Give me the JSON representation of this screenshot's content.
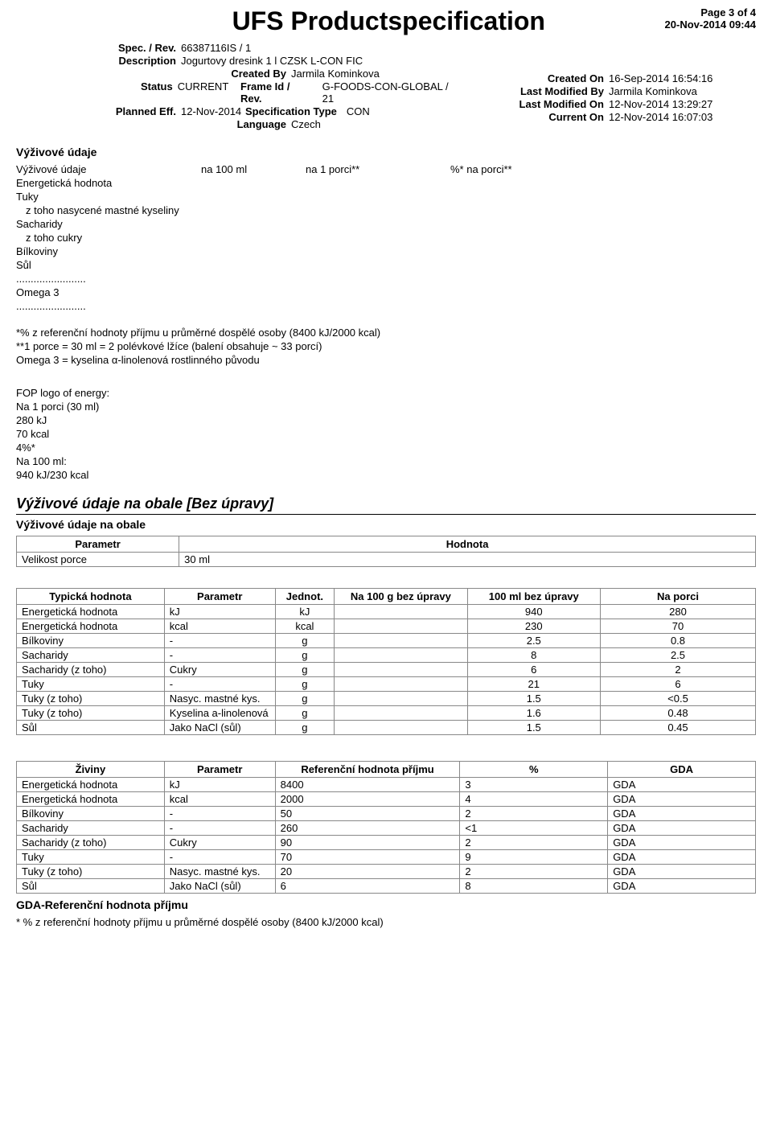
{
  "page_info": {
    "page": "Page 3 of 4",
    "datetime": "20-Nov-2014 09:44"
  },
  "main_title": "UFS Productspecification",
  "meta_left": {
    "spec_rev_label": "Spec. / Rev.",
    "spec_rev": "66387116IS  /  1",
    "description_label": "Description",
    "description": "Jogurtovy dresink 1 l CZSK L-CON FIC",
    "created_by_label": "Created By",
    "created_by": "Jarmila Kominkova",
    "status_label": "Status",
    "status": "CURRENT",
    "frame_label": "Frame Id / Rev.",
    "frame": "G-FOODS-CON-GLOBAL  /   21",
    "planned_label": "Planned Eff.",
    "planned": "12-Nov-2014",
    "spectype_label": "Specification Type",
    "spectype": "CON",
    "language_label": "Language",
    "language": "Czech"
  },
  "meta_right": {
    "created_on_label": "Created On",
    "created_on": "16-Sep-2014 16:54:16",
    "modified_by_label": "Last Modified By",
    "modified_by": "Jarmila Kominkova",
    "modified_on_label": "Last Modified On",
    "modified_on": "12-Nov-2014 13:29:27",
    "current_on_label": "Current On",
    "current_on": "12-Nov-2014 16:07:03"
  },
  "nutri_section_title": "Výživové údaje",
  "nutri_header": {
    "c1": "Výživové údaje",
    "c2": "na 100 ml",
    "c3": "na 1 porci**",
    "c4": "%* na porci**"
  },
  "nutri_rows": [
    "Energetická hodnota",
    "Tuky",
    "  z toho nasycené mastné kyseliny",
    "Sacharidy",
    "  z toho cukry",
    "Bílkoviny",
    "Sůl",
    "........................",
    "Omega 3",
    "........................"
  ],
  "nutri_notes": [
    "*% z referenční  hodnoty příjmu u průměrné dospělé osoby (8400 kJ/2000 kcal)",
    "**1 porce = 30 ml = 2 polévkové lžíce (balení obsahuje ~ 33 porcí)",
    "Omega 3 = kyselina α-linolenová rostlinného původu"
  ],
  "fop_block": [
    "FOP logo of energy:",
    "Na 1 porci (30 ml)",
    "280 kJ",
    "70 kcal",
    "4%*",
    " Na 100 ml:",
    "940 kJ/230 kcal"
  ],
  "pack_title": "Výživové údaje na obale  [Bez úpravy]",
  "pack_subtitle": "Výživové údaje na obale",
  "serving_table": {
    "headers": [
      "Parametr",
      "Hodnota"
    ],
    "row": [
      "Velikost porce",
      "30 ml"
    ]
  },
  "typical_table": {
    "headers": [
      "Typická hodnota",
      "Parametr",
      "Jednot.",
      "Na 100 g bez úpravy",
      "100 ml bez úpravy",
      "Na porci"
    ],
    "rows": [
      [
        "Energetická hodnota",
        "kJ",
        "kJ",
        "",
        "940",
        "280"
      ],
      [
        "Energetická hodnota",
        "kcal",
        "kcal",
        "",
        "230",
        "70"
      ],
      [
        "Bílkoviny",
        "-",
        "g",
        "",
        "2.5",
        "0.8"
      ],
      [
        "Sacharidy",
        "-",
        "g",
        "",
        "8",
        "2.5"
      ],
      [
        "Sacharidy (z toho)",
        "Cukry",
        "g",
        "",
        "6",
        "2"
      ],
      [
        "Tuky",
        "-",
        "g",
        "",
        "21",
        "6"
      ],
      [
        "Tuky (z toho)",
        "Nasyc. mastné kys.",
        "g",
        "",
        "1.5",
        "<0.5"
      ],
      [
        "Tuky (z toho)",
        "Kyselina a-linolenová",
        "g",
        "",
        "1.6",
        "0.48"
      ],
      [
        "Sůl",
        "Jako NaCl (sůl)",
        "g",
        "",
        "1.5",
        "0.45"
      ]
    ]
  },
  "gda_table": {
    "headers": [
      "Živiny",
      "Parametr",
      "Referenční hodnota příjmu",
      "%",
      "GDA"
    ],
    "rows": [
      [
        "Energetická hodnota",
        "kJ",
        "8400",
        "3",
        "GDA"
      ],
      [
        "Energetická hodnota",
        "kcal",
        "2000",
        "4",
        "GDA"
      ],
      [
        "Bílkoviny",
        "-",
        "50",
        "2",
        "GDA"
      ],
      [
        "Sacharidy",
        "-",
        "260",
        "<1",
        "GDA"
      ],
      [
        "Sacharidy (z toho)",
        "Cukry",
        "90",
        "2",
        "GDA"
      ],
      [
        "Tuky",
        "-",
        "70",
        "9",
        "GDA"
      ],
      [
        "Tuky (z toho)",
        "Nasyc. mastné kys.",
        "20",
        "2",
        "GDA"
      ],
      [
        "Sůl",
        "Jako NaCl (sůl)",
        "6",
        "8",
        "GDA"
      ]
    ]
  },
  "gda_footer_title": "GDA-Referenční hodnota příjmu",
  "gda_footer_note": "* % z referenční hodnoty příjmu u průměrné dospělé osoby (8400 kJ/2000 kcal)"
}
